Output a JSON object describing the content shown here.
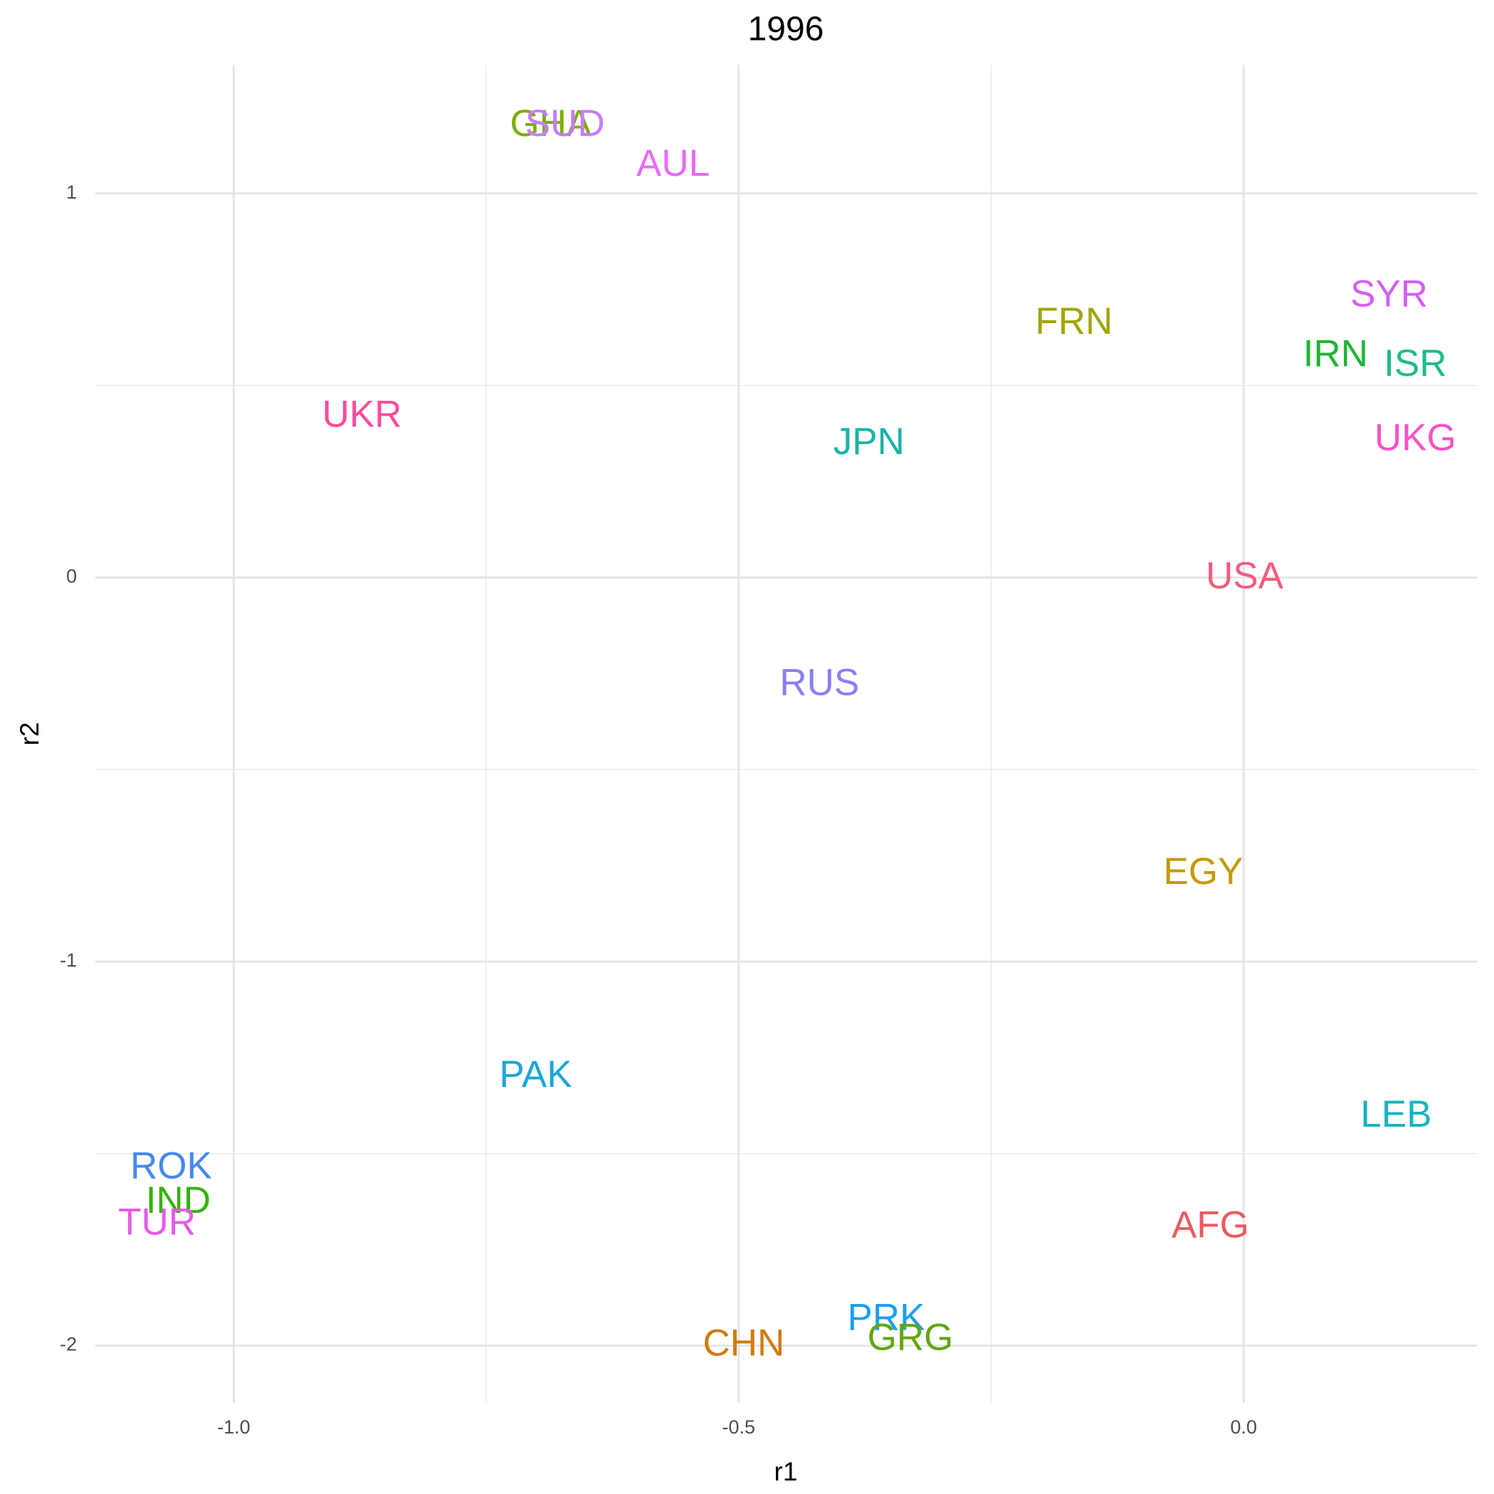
{
  "chart_data": {
    "type": "scatter",
    "title": "1996",
    "x_label": "r1",
    "y_label": "r2",
    "xlim": [
      -1.137,
      0.231
    ],
    "ylim": [
      -2.149,
      1.335
    ],
    "xticks": [
      {
        "value": -1,
        "label": "-1.0"
      },
      -0.5,
      {
        "value": 0,
        "label": "0.0"
      }
    ],
    "yticks": [
      -2,
      -1,
      0,
      1
    ],
    "grid": true,
    "points": [
      {
        "label": "GHA",
        "x": -0.686,
        "y": 1.176,
        "color": "#7CAE00"
      },
      {
        "label": "SUD",
        "x": -0.672,
        "y": 1.176,
        "color": "#C77CFF"
      },
      {
        "label": "AUL",
        "x": -0.565,
        "y": 1.072,
        "color": "#E76BF3"
      },
      {
        "label": "FRN",
        "x": -0.168,
        "y": 0.66,
        "color": "#A3A500"
      },
      {
        "label": "SYR",
        "x": 0.144,
        "y": 0.732,
        "color": "#D35FF4"
      },
      {
        "label": "IRN",
        "x": 0.091,
        "y": 0.576,
        "color": "#1FB533"
      },
      {
        "label": "ISR",
        "x": 0.17,
        "y": 0.551,
        "color": "#1CBC8C"
      },
      {
        "label": "UKR",
        "x": -0.873,
        "y": 0.419,
        "color": "#FB4C9B"
      },
      {
        "label": "JPN",
        "x": -0.371,
        "y": 0.347,
        "color": "#17B3A6"
      },
      {
        "label": "UKG",
        "x": 0.17,
        "y": 0.357,
        "color": "#F653C7"
      },
      {
        "label": "USA",
        "x": 0.001,
        "y": -0.002,
        "color": "#F35C80"
      },
      {
        "label": "RUS",
        "x": -0.42,
        "y": -0.28,
        "color": "#8B7FF5"
      },
      {
        "label": "EGY",
        "x": -0.04,
        "y": -0.772,
        "color": "#C49A00"
      },
      {
        "label": "PAK",
        "x": -0.701,
        "y": -1.3,
        "color": "#1BA6DB"
      },
      {
        "label": "LEB",
        "x": 0.151,
        "y": -1.404,
        "color": "#1AB3C2"
      },
      {
        "label": "ROK",
        "x": -1.062,
        "y": -1.538,
        "color": "#4489F0"
      },
      {
        "label": "IND",
        "x": -1.055,
        "y": -1.628,
        "color": "#36B20A"
      },
      {
        "label": "TUR",
        "x": -1.076,
        "y": -1.685,
        "color": "#E65AE6"
      },
      {
        "label": "AFG",
        "x": -0.033,
        "y": -1.692,
        "color": "#EB5B60"
      },
      {
        "label": "PRK",
        "x": -0.354,
        "y": -1.933,
        "color": "#1E9FEA"
      },
      {
        "label": "GRG",
        "x": -0.33,
        "y": -1.985,
        "color": "#62A611"
      },
      {
        "label": "CHN",
        "x": -0.495,
        "y": -2.0,
        "color": "#D17A0C"
      }
    ]
  }
}
